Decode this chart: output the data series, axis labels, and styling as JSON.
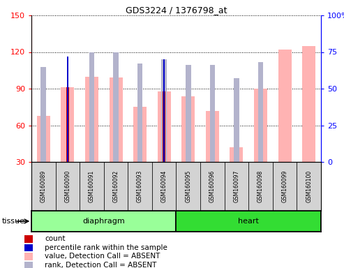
{
  "title": "GDS3224 / 1376798_at",
  "samples": [
    "GSM160089",
    "GSM160090",
    "GSM160091",
    "GSM160092",
    "GSM160093",
    "GSM160094",
    "GSM160095",
    "GSM160096",
    "GSM160097",
    "GSM160098",
    "GSM160099",
    "GSM160100"
  ],
  "groups": [
    "diaphragm",
    "diaphragm",
    "diaphragm",
    "diaphragm",
    "diaphragm",
    "diaphragm",
    "heart",
    "heart",
    "heart",
    "heart",
    "heart",
    "heart"
  ],
  "value_absent": [
    68,
    91,
    100,
    99,
    75,
    88,
    84,
    72,
    42,
    90,
    122,
    125
  ],
  "rank_absent": [
    65,
    null,
    75,
    75,
    67,
    70,
    66,
    66,
    57,
    68,
    null,
    null
  ],
  "count": [
    null,
    91,
    null,
    null,
    null,
    88,
    null,
    null,
    null,
    null,
    null,
    null
  ],
  "percentile_rank": [
    null,
    72,
    null,
    null,
    null,
    70,
    null,
    null,
    null,
    null,
    null,
    null
  ],
  "ylim_left": [
    30,
    150
  ],
  "ylim_right": [
    0,
    100
  ],
  "yticks_left": [
    30,
    60,
    90,
    120,
    150
  ],
  "yticks_right": [
    0,
    25,
    50,
    75,
    100
  ],
  "color_value_absent": "#ffb3b3",
  "color_rank_absent": "#b3b3cc",
  "color_count": "#cc0000",
  "color_percentile": "#0000cc",
  "color_diaphragm": "#99ff99",
  "color_heart": "#33dd33",
  "color_xlabel_bg": "#d3d3d3"
}
